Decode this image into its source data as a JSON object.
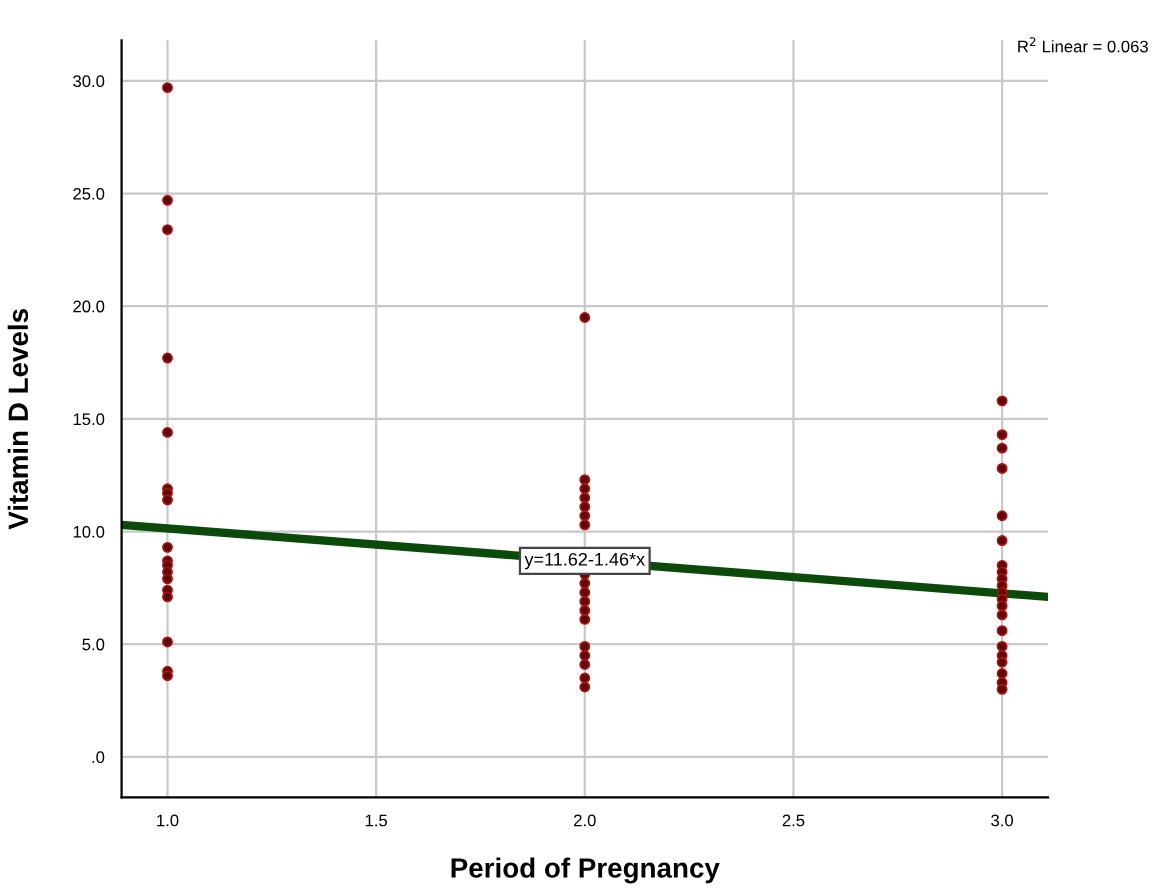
{
  "chart_data": {
    "type": "scatter",
    "xlabel": "Period of Pregnancy",
    "ylabel": "Vitamin D Levels",
    "xlim": [
      0.89,
      3.11
    ],
    "ylim": [
      -1.8,
      31.8
    ],
    "xticks": [
      {
        "value": 1,
        "label": "1.0"
      },
      {
        "value": 1.5,
        "label": "1.5"
      },
      {
        "value": 2,
        "label": "2.0"
      },
      {
        "value": 2.5,
        "label": "2.5"
      },
      {
        "value": 3,
        "label": "3.0"
      }
    ],
    "yticks": [
      {
        "value": 0,
        "label": ".0"
      },
      {
        "value": 5,
        "label": "5.0"
      },
      {
        "value": 10,
        "label": "10.0"
      },
      {
        "value": 15,
        "label": "15.0"
      },
      {
        "value": 20,
        "label": "20.0"
      },
      {
        "value": 25,
        "label": "25.0"
      },
      {
        "value": 30,
        "label": "30.0"
      }
    ],
    "grid": true,
    "legend": false,
    "series": [
      {
        "color": "#5a0a0a",
        "marker": "circle",
        "x": [
          1,
          1,
          1,
          1,
          1,
          1,
          1,
          1,
          1,
          1,
          1,
          1,
          1,
          1,
          1,
          1,
          1,
          1,
          2,
          2,
          2,
          2,
          2,
          2,
          2,
          2,
          2,
          2,
          2,
          2,
          2,
          2,
          2,
          2,
          2,
          2,
          3,
          3,
          3,
          3,
          3,
          3,
          3,
          3,
          3,
          3,
          3,
          3,
          3,
          3,
          3,
          3,
          3,
          3,
          3,
          3,
          3
        ],
        "values": [
          29.7,
          24.7,
          23.4,
          17.7,
          14.4,
          11.9,
          11.7,
          11.4,
          9.3,
          8.7,
          8.5,
          8.2,
          7.9,
          7.4,
          7.1,
          5.1,
          3.8,
          3.6,
          19.5,
          12.3,
          11.9,
          11.5,
          11.1,
          10.7,
          10.3,
          8.1,
          7.7,
          7.3,
          6.9,
          6.5,
          6.1,
          4.9,
          4.5,
          4.1,
          3.5,
          3.1,
          15.8,
          14.3,
          13.7,
          12.8,
          10.7,
          9.6,
          8.5,
          8.2,
          7.9,
          7.6,
          7.3,
          7.0,
          6.7,
          6.3,
          5.6,
          4.9,
          4.5,
          4.2,
          3.7,
          3.3,
          3.0
        ]
      },
      {
        "type": "line",
        "color": "#0b4a0b",
        "marker": "none",
        "x": [
          0.89,
          3.11
        ],
        "values": [
          10.3,
          7.1
        ]
      }
    ],
    "annotations": [
      {
        "text": "y=11.62-1.46*x",
        "x": 2.0,
        "y": 8.7
      },
      "R$^{2}$ Linear = 0.063"
    ]
  }
}
